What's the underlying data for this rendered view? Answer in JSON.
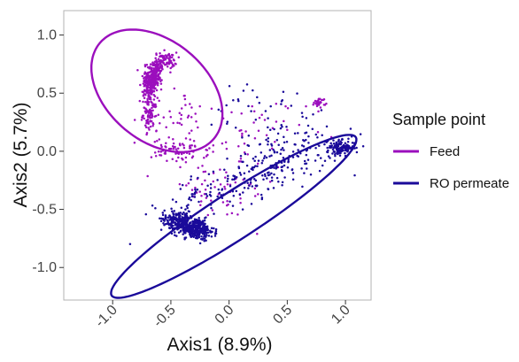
{
  "chart_data": {
    "type": "scatter",
    "title": "",
    "xlabel": "Axis1 (8.9%)",
    "ylabel": "Axis2 (5.7%)",
    "xlim": [
      -1.42,
      1.22
    ],
    "ylim": [
      -1.28,
      1.21
    ],
    "x_ticks": [
      {
        "value": -1.0,
        "label": "-1.0"
      },
      {
        "value": -0.5,
        "label": "-0.5"
      },
      {
        "value": 0.0,
        "label": "0.0"
      },
      {
        "value": 0.5,
        "label": "0.5"
      },
      {
        "value": 1.0,
        "label": "1.0"
      }
    ],
    "y_ticks": [
      {
        "value": -1.0,
        "label": "-1.0"
      },
      {
        "value": -0.5,
        "label": "-0.5"
      },
      {
        "value": 0.0,
        "label": "0.0"
      },
      {
        "value": 0.5,
        "label": "0.5"
      },
      {
        "value": 1.0,
        "label": "1.0"
      }
    ],
    "grid": false,
    "legend": {
      "title": "Sample point",
      "placement": "right",
      "entries": [
        "Feed",
        "RO permeate"
      ]
    },
    "series": [
      {
        "name": "Feed",
        "color": "#9b0fbd",
        "clusters": [
          {
            "center": [
              -0.66,
              0.62
            ],
            "spread": [
              0.035,
              0.09
            ],
            "rotation": -15,
            "count": 320
          },
          {
            "center": [
              -0.55,
              0.78
            ],
            "spread": [
              0.05,
              0.035
            ],
            "rotation": 0,
            "count": 80
          },
          {
            "center": [
              -0.68,
              0.32
            ],
            "spread": [
              0.03,
              0.07
            ],
            "rotation": 0,
            "count": 90
          },
          {
            "center": [
              -0.42,
              0.0
            ],
            "spread": [
              0.12,
              0.05
            ],
            "rotation": 0,
            "count": 70
          },
          {
            "center": [
              -0.5,
              0.3
            ],
            "spread": [
              0.15,
              0.12
            ],
            "rotation": 0,
            "count": 40
          },
          {
            "center": [
              0.78,
              0.42
            ],
            "spread": [
              0.025,
              0.02
            ],
            "rotation": 0,
            "count": 30
          },
          {
            "center": [
              0.15,
              0.15
            ],
            "spread": [
              0.25,
              0.15
            ],
            "rotation": 0,
            "count": 50
          },
          {
            "center": [
              -0.1,
              -0.35
            ],
            "spread": [
              0.25,
              0.12
            ],
            "rotation": 0,
            "count": 60
          }
        ],
        "ellipse": {
          "center": [
            -0.62,
            0.52
          ],
          "radii": [
            0.64,
            0.43
          ],
          "rotation": -40
        }
      },
      {
        "name": "RO permeate",
        "color": "#1a0a9a",
        "clusters": [
          {
            "center": [
              -0.3,
              -0.66
            ],
            "spread": [
              0.085,
              0.045
            ],
            "rotation": -12,
            "count": 380
          },
          {
            "center": [
              -0.46,
              -0.58
            ],
            "spread": [
              0.06,
              0.04
            ],
            "rotation": 0,
            "count": 120
          },
          {
            "center": [
              0.96,
              0.03
            ],
            "spread": [
              0.06,
              0.03
            ],
            "rotation": 0,
            "count": 140
          },
          {
            "center": [
              0.2,
              -0.22
            ],
            "spread": [
              0.4,
              0.1
            ],
            "rotation": 20,
            "count": 200
          },
          {
            "center": [
              0.5,
              0.05
            ],
            "spread": [
              0.22,
              0.12
            ],
            "rotation": 15,
            "count": 80
          },
          {
            "center": [
              0.2,
              0.4
            ],
            "spread": [
              0.2,
              0.1
            ],
            "rotation": 0,
            "count": 30
          }
        ],
        "ellipse": {
          "center": [
            0.04,
            -0.56
          ],
          "radii": [
            1.25,
            0.2
          ],
          "rotation": 33
        }
      }
    ]
  }
}
